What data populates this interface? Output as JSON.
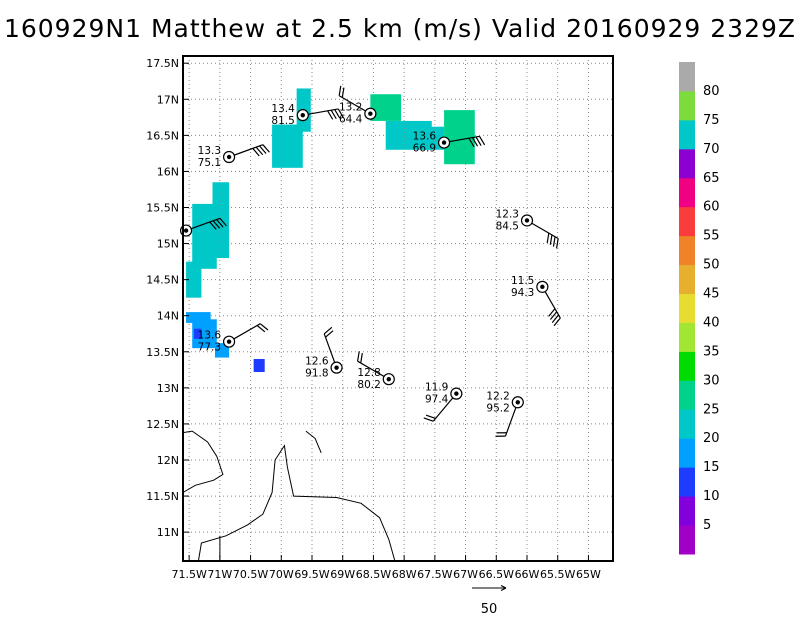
{
  "title": "160929N1 Matthew at 2.5 km (m/s) Valid 20160929 2329Z",
  "map": {
    "lon_range": [
      -71.6,
      -64.6
    ],
    "lat_range": [
      10.6,
      17.6
    ],
    "x_ticks": [
      {
        "lon": -71.5,
        "label": "71.5W"
      },
      {
        "lon": -71.0,
        "label": "71W"
      },
      {
        "lon": -70.5,
        "label": "70.5W"
      },
      {
        "lon": -70.0,
        "label": "70W"
      },
      {
        "lon": -69.5,
        "label": "69.5W"
      },
      {
        "lon": -69.0,
        "label": "69W"
      },
      {
        "lon": -68.5,
        "label": "68.5W"
      },
      {
        "lon": -68.0,
        "label": "68W"
      },
      {
        "lon": -67.5,
        "label": "67.5W"
      },
      {
        "lon": -67.0,
        "label": "67W"
      },
      {
        "lon": -66.5,
        "label": "66.5W"
      },
      {
        "lon": -66.0,
        "label": "66W"
      },
      {
        "lon": -65.5,
        "label": "65.5W"
      },
      {
        "lon": -65.0,
        "label": "65W"
      }
    ],
    "y_ticks": [
      {
        "lat": 11.0,
        "label": "11N"
      },
      {
        "lat": 11.5,
        "label": "11.5N"
      },
      {
        "lat": 12.0,
        "label": "12N"
      },
      {
        "lat": 12.5,
        "label": "12.5N"
      },
      {
        "lat": 13.0,
        "label": "13N"
      },
      {
        "lat": 13.5,
        "label": "13.5N"
      },
      {
        "lat": 14.0,
        "label": "14N"
      },
      {
        "lat": 14.5,
        "label": "14.5N"
      },
      {
        "lat": 15.0,
        "label": "15N"
      },
      {
        "lat": 15.5,
        "label": "15.5N"
      },
      {
        "lat": 16.0,
        "label": "16N"
      },
      {
        "lat": 16.5,
        "label": "16.5N"
      },
      {
        "lat": 17.0,
        "label": "17N"
      },
      {
        "lat": 17.5,
        "label": "17.5N"
      }
    ],
    "grid": true
  },
  "colorbar": {
    "colors": [
      "#a000c8",
      "#8200dc",
      "#1e3cff",
      "#00a0ff",
      "#00c8c8",
      "#00d28c",
      "#00dc00",
      "#a0e632",
      "#e6dc32",
      "#e6af2d",
      "#f08228",
      "#fa3c3c",
      "#f00082",
      "#8c00d2",
      "#00c8c8",
      "#7ddc3c",
      "#aaaaaa"
    ],
    "labels": [
      {
        "value": 5,
        "text": "5"
      },
      {
        "value": 10,
        "text": "10"
      },
      {
        "value": 15,
        "text": "15"
      },
      {
        "value": 20,
        "text": "20"
      },
      {
        "value": 25,
        "text": "25"
      },
      {
        "value": 30,
        "text": "30"
      },
      {
        "value": 35,
        "text": "35"
      },
      {
        "value": 40,
        "text": "40"
      },
      {
        "value": 45,
        "text": "45"
      },
      {
        "value": 50,
        "text": "50"
      },
      {
        "value": 55,
        "text": "55"
      },
      {
        "value": 60,
        "text": "60"
      },
      {
        "value": 65,
        "text": "65"
      },
      {
        "value": 70,
        "text": "70"
      },
      {
        "value": 75,
        "text": "75"
      },
      {
        "value": 80,
        "text": "80"
      }
    ]
  },
  "stations": [
    {
      "lon": -69.65,
      "lat": 16.78,
      "line1": "13.4",
      "line2": "81.5",
      "label_side": "left",
      "barb_dir": 80,
      "barb_flags": 4
    },
    {
      "lon": -68.55,
      "lat": 16.8,
      "line1": "13.2",
      "line2": "64.4",
      "label_side": "left",
      "barb_dir": 300,
      "barb_flags": 2
    },
    {
      "lon": -67.35,
      "lat": 16.4,
      "line1": "13.6",
      "line2": "66.9",
      "label_side": "left",
      "barb_dir": 80,
      "barb_flags": 4
    },
    {
      "lon": -70.85,
      "lat": 16.2,
      "line1": "13.3",
      "line2": "75.1",
      "label_side": "left",
      "barb_dir": 70,
      "barb_flags": 4
    },
    {
      "lon": -71.55,
      "lat": 15.18,
      "line1": "",
      "line2": "",
      "label_side": "left",
      "barb_dir": 70,
      "barb_flags": 4
    },
    {
      "lon": -66.0,
      "lat": 15.32,
      "line1": "12.3",
      "line2": "84.5",
      "label_side": "left",
      "barb_dir": 120,
      "barb_flags": 4
    },
    {
      "lon": -65.75,
      "lat": 14.4,
      "line1": "11.5",
      "line2": "94.3",
      "label_side": "left",
      "barb_dir": 150,
      "barb_flags": 4
    },
    {
      "lon": -70.85,
      "lat": 13.64,
      "line1": "13.6",
      "line2": "77.3",
      "label_side": "left",
      "barb_dir": 60,
      "barb_flags": 2
    },
    {
      "lon": -69.1,
      "lat": 13.28,
      "line1": "12.6",
      "line2": "91.8",
      "label_side": "left",
      "barb_dir": 340,
      "barb_flags": 2
    },
    {
      "lon": -68.25,
      "lat": 13.12,
      "line1": "12.8",
      "line2": "80.2",
      "label_side": "left",
      "barb_dir": 300,
      "barb_flags": 2
    },
    {
      "lon": -67.15,
      "lat": 12.92,
      "line1": "11.9",
      "line2": "97.4",
      "label_side": "left",
      "barb_dir": 220,
      "barb_flags": 2
    },
    {
      "lon": -66.15,
      "lat": 12.8,
      "line1": "12.2",
      "line2": "95.2",
      "label_side": "left",
      "barb_dir": 200,
      "barb_flags": 2
    }
  ],
  "wind_cells": [
    {
      "lon0": -69.75,
      "lat0": 16.55,
      "lon1": -69.52,
      "lat1": 17.15,
      "value": 22
    },
    {
      "lon0": -70.15,
      "lat0": 16.05,
      "lon1": -69.65,
      "lat1": 16.65,
      "value": 21
    },
    {
      "lon0": -68.55,
      "lat0": 16.7,
      "lon1": -68.05,
      "lat1": 17.07,
      "value": 26
    },
    {
      "lon0": -68.3,
      "lat0": 16.3,
      "lon1": -67.55,
      "lat1": 16.7,
      "value": 22
    },
    {
      "lon0": -67.35,
      "lat0": 16.1,
      "lon1": -66.85,
      "lat1": 16.85,
      "value": 26
    },
    {
      "lon0": -67.7,
      "lat0": 16.3,
      "lon1": -67.35,
      "lat1": 16.62,
      "value": 22
    },
    {
      "lon0": -71.12,
      "lat0": 14.8,
      "lon1": -70.85,
      "lat1": 15.85,
      "value": 21
    },
    {
      "lon0": -71.45,
      "lat0": 14.65,
      "lon1": -71.05,
      "lat1": 15.55,
      "value": 21
    },
    {
      "lon0": -71.55,
      "lat0": 14.25,
      "lon1": -71.3,
      "lat1": 14.75,
      "value": 21
    },
    {
      "lon0": -71.55,
      "lat0": 13.9,
      "lon1": -71.15,
      "lat1": 14.05,
      "value": 16
    },
    {
      "lon0": -71.45,
      "lat0": 13.55,
      "lon1": -71.05,
      "lat1": 13.95,
      "value": 16
    },
    {
      "lon0": -71.08,
      "lat0": 13.42,
      "lon1": -70.85,
      "lat1": 13.62,
      "value": 16
    },
    {
      "lon0": -71.42,
      "lat0": 13.68,
      "lon1": -71.3,
      "lat1": 13.82,
      "value": 11
    },
    {
      "lon0": -70.45,
      "lat0": 13.22,
      "lon1": -70.27,
      "lat1": 13.4,
      "value": 11
    }
  ],
  "coastlines": [
    [
      [
        -71.6,
        12.38
      ],
      [
        -71.45,
        12.4
      ],
      [
        -71.2,
        12.25
      ],
      [
        -71.05,
        12.05
      ],
      [
        -70.95,
        11.8
      ],
      [
        -71.1,
        11.72
      ],
      [
        -71.4,
        11.65
      ],
      [
        -71.6,
        11.55
      ]
    ],
    [
      [
        -71.35,
        10.6
      ],
      [
        -71.3,
        10.85
      ],
      [
        -70.9,
        10.95
      ],
      [
        -70.55,
        11.1
      ],
      [
        -70.3,
        11.25
      ],
      [
        -70.15,
        11.55
      ],
      [
        -70.1,
        12.0
      ],
      [
        -69.95,
        12.2
      ],
      [
        -69.9,
        11.9
      ],
      [
        -69.8,
        11.5
      ],
      [
        -69.1,
        11.48
      ],
      [
        -68.7,
        11.4
      ],
      [
        -68.4,
        11.2
      ],
      [
        -68.25,
        10.9
      ],
      [
        -68.15,
        10.6
      ]
    ],
    [
      [
        -69.6,
        12.4
      ],
      [
        -69.45,
        12.3
      ],
      [
        -69.35,
        12.1
      ]
    ],
    [
      [
        -71.0,
        10.62
      ],
      [
        -71.0,
        10.95
      ]
    ]
  ],
  "scale_arrow": {
    "label": "50"
  }
}
